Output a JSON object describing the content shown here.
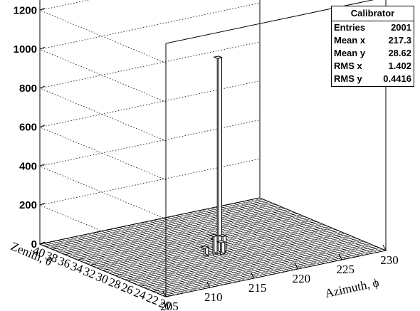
{
  "chart_data": {
    "type": "lego",
    "title": "",
    "xlabel": "Azimuth, ϕ",
    "ylabel": "Zenith, θ",
    "zlabel": "",
    "x_range": [
      205,
      230
    ],
    "y_range": [
      20,
      40
    ],
    "z_range": [
      0,
      1300
    ],
    "x_ticks": [
      "205",
      "210",
      "215",
      "220",
      "225",
      "230"
    ],
    "y_ticks": [
      "20",
      "22",
      "24",
      "26",
      "28",
      "30",
      "32",
      "34",
      "36",
      "38",
      "40"
    ],
    "z_ticks": [
      "0",
      "200",
      "400",
      "600",
      "800",
      "1000",
      "1200"
    ],
    "grid": "z-gridlines dotted",
    "bins": [
      {
        "x": 217.0,
        "y": 28.5,
        "value": 1000
      },
      {
        "x": 216.5,
        "y": 28.5,
        "value": 90
      },
      {
        "x": 217.5,
        "y": 28.5,
        "value": 80
      },
      {
        "x": 217.0,
        "y": 29.0,
        "value": 60
      },
      {
        "x": 217.0,
        "y": 28.0,
        "value": 60
      },
      {
        "x": 215.5,
        "y": 28.5,
        "value": 40
      }
    ]
  },
  "stats": {
    "title": "Calibrator",
    "rows": [
      {
        "label": "Entries",
        "value": "2001"
      },
      {
        "label": "Mean x",
        "value": "217.3"
      },
      {
        "label": "Mean y",
        "value": "28.62"
      },
      {
        "label": "RMS x",
        "value": "1.402"
      },
      {
        "label": "RMS y",
        "value": "0.4416"
      }
    ]
  }
}
